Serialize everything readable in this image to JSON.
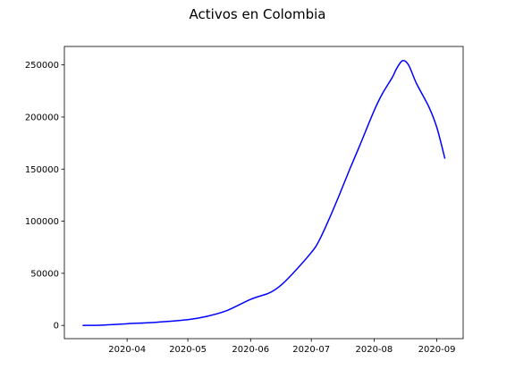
{
  "chart_data": {
    "type": "line",
    "title": "Activos en Colombia",
    "xlabel": "",
    "ylabel": "",
    "x_axis": {
      "type": "date",
      "range": [
        "2020-03-01",
        "2020-09-14"
      ],
      "ticks": [
        "2020-04-01",
        "2020-05-01",
        "2020-06-01",
        "2020-07-01",
        "2020-08-01",
        "2020-09-01"
      ],
      "tick_labels": [
        "2020-04",
        "2020-05",
        "2020-06",
        "2020-07",
        "2020-08",
        "2020-09"
      ]
    },
    "y_axis": {
      "range": [
        -12700,
        267700
      ],
      "ticks": [
        0,
        50000,
        100000,
        150000,
        200000,
        250000
      ],
      "tick_labels": [
        "0",
        "50000",
        "100000",
        "150000",
        "200000",
        "250000"
      ]
    },
    "grid": false,
    "legend": "none",
    "series": [
      {
        "color": "#0000ff",
        "points": [
          [
            "2020-03-10",
            0
          ],
          [
            "2020-03-20",
            300
          ],
          [
            "2020-04-01",
            1600
          ],
          [
            "2020-04-15",
            3000
          ],
          [
            "2020-05-01",
            5500
          ],
          [
            "2020-05-10",
            8500
          ],
          [
            "2020-05-20",
            14000
          ],
          [
            "2020-06-01",
            25000
          ],
          [
            "2020-06-10",
            31000
          ],
          [
            "2020-06-15",
            37000
          ],
          [
            "2020-06-20",
            46000
          ],
          [
            "2020-07-01",
            70000
          ],
          [
            "2020-07-05",
            82000
          ],
          [
            "2020-07-10",
            103000
          ],
          [
            "2020-07-15",
            126000
          ],
          [
            "2020-07-20",
            150000
          ],
          [
            "2020-07-25",
            173000
          ],
          [
            "2020-08-01",
            206000
          ],
          [
            "2020-08-05",
            222000
          ],
          [
            "2020-08-10",
            238000
          ],
          [
            "2020-08-12",
            246000
          ],
          [
            "2020-08-15",
            254000
          ],
          [
            "2020-08-18",
            250000
          ],
          [
            "2020-08-22",
            232000
          ],
          [
            "2020-08-28",
            210000
          ],
          [
            "2020-09-01",
            190000
          ],
          [
            "2020-09-05",
            160000
          ]
        ]
      }
    ]
  }
}
